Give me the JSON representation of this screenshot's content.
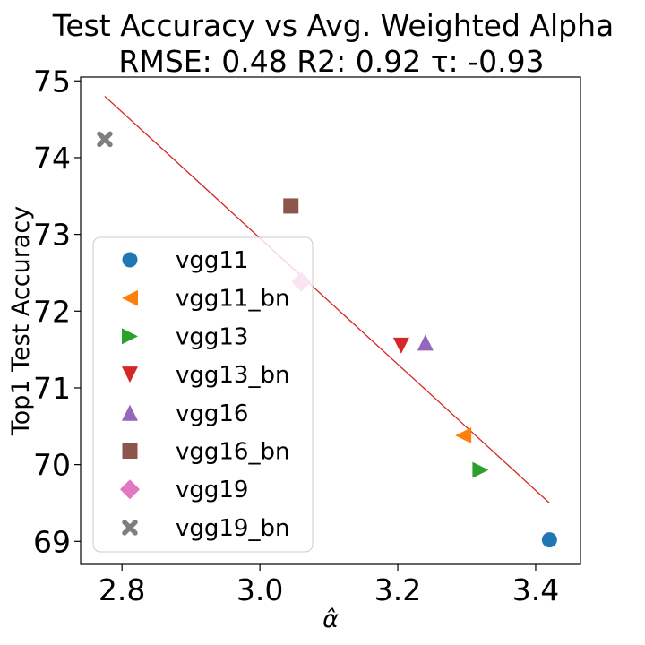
{
  "chart_data": {
    "type": "scatter",
    "title": "Test Accuracy vs Avg. Weighted Alpha",
    "subtitle": "RMSE: 0.48 R2: 0.92 τ: -0.93",
    "xlabel": "α̂",
    "ylabel": "Top1 Test Accuracy",
    "xlim": [
      2.74,
      3.465
    ],
    "ylim": [
      68.7,
      75.05
    ],
    "xticks": [
      2.8,
      3.0,
      3.2,
      3.4
    ],
    "xtick_labels": [
      "2.8",
      "3.0",
      "3.2",
      "3.4"
    ],
    "yticks": [
      69,
      70,
      71,
      72,
      73,
      74,
      75
    ],
    "ytick_labels": [
      "69",
      "70",
      "71",
      "72",
      "73",
      "74",
      "75"
    ],
    "grid": false,
    "legend_position": "lower-left",
    "series": [
      {
        "name": "vgg11",
        "marker": "circle",
        "color": "#1f77b4",
        "x": [
          3.42
        ],
        "y": [
          69.02
        ]
      },
      {
        "name": "vgg11_bn",
        "marker": "triangle-left",
        "color": "#ff7f0e",
        "x": [
          3.295
        ],
        "y": [
          70.38
        ]
      },
      {
        "name": "vgg13",
        "marker": "triangle-right",
        "color": "#2ca02c",
        "x": [
          3.32
        ],
        "y": [
          69.93
        ]
      },
      {
        "name": "vgg13_bn",
        "marker": "triangle-down",
        "color": "#d62728",
        "x": [
          3.205
        ],
        "y": [
          71.55
        ]
      },
      {
        "name": "vgg16",
        "marker": "triangle-up",
        "color": "#9467bd",
        "x": [
          3.24
        ],
        "y": [
          71.59
        ]
      },
      {
        "name": "vgg16_bn",
        "marker": "square",
        "color": "#8c564b",
        "x": [
          3.045
        ],
        "y": [
          73.37
        ]
      },
      {
        "name": "vgg19",
        "marker": "diamond",
        "color": "#e377c2",
        "x": [
          3.06
        ],
        "y": [
          72.38
        ]
      },
      {
        "name": "vgg19_bn",
        "marker": "x",
        "color": "#7f7f7f",
        "x": [
          2.775
        ],
        "y": [
          74.24
        ]
      }
    ],
    "fit_line": {
      "color": "#d62728",
      "x": [
        2.775,
        3.42
      ],
      "y": [
        74.8,
        69.5
      ]
    }
  }
}
